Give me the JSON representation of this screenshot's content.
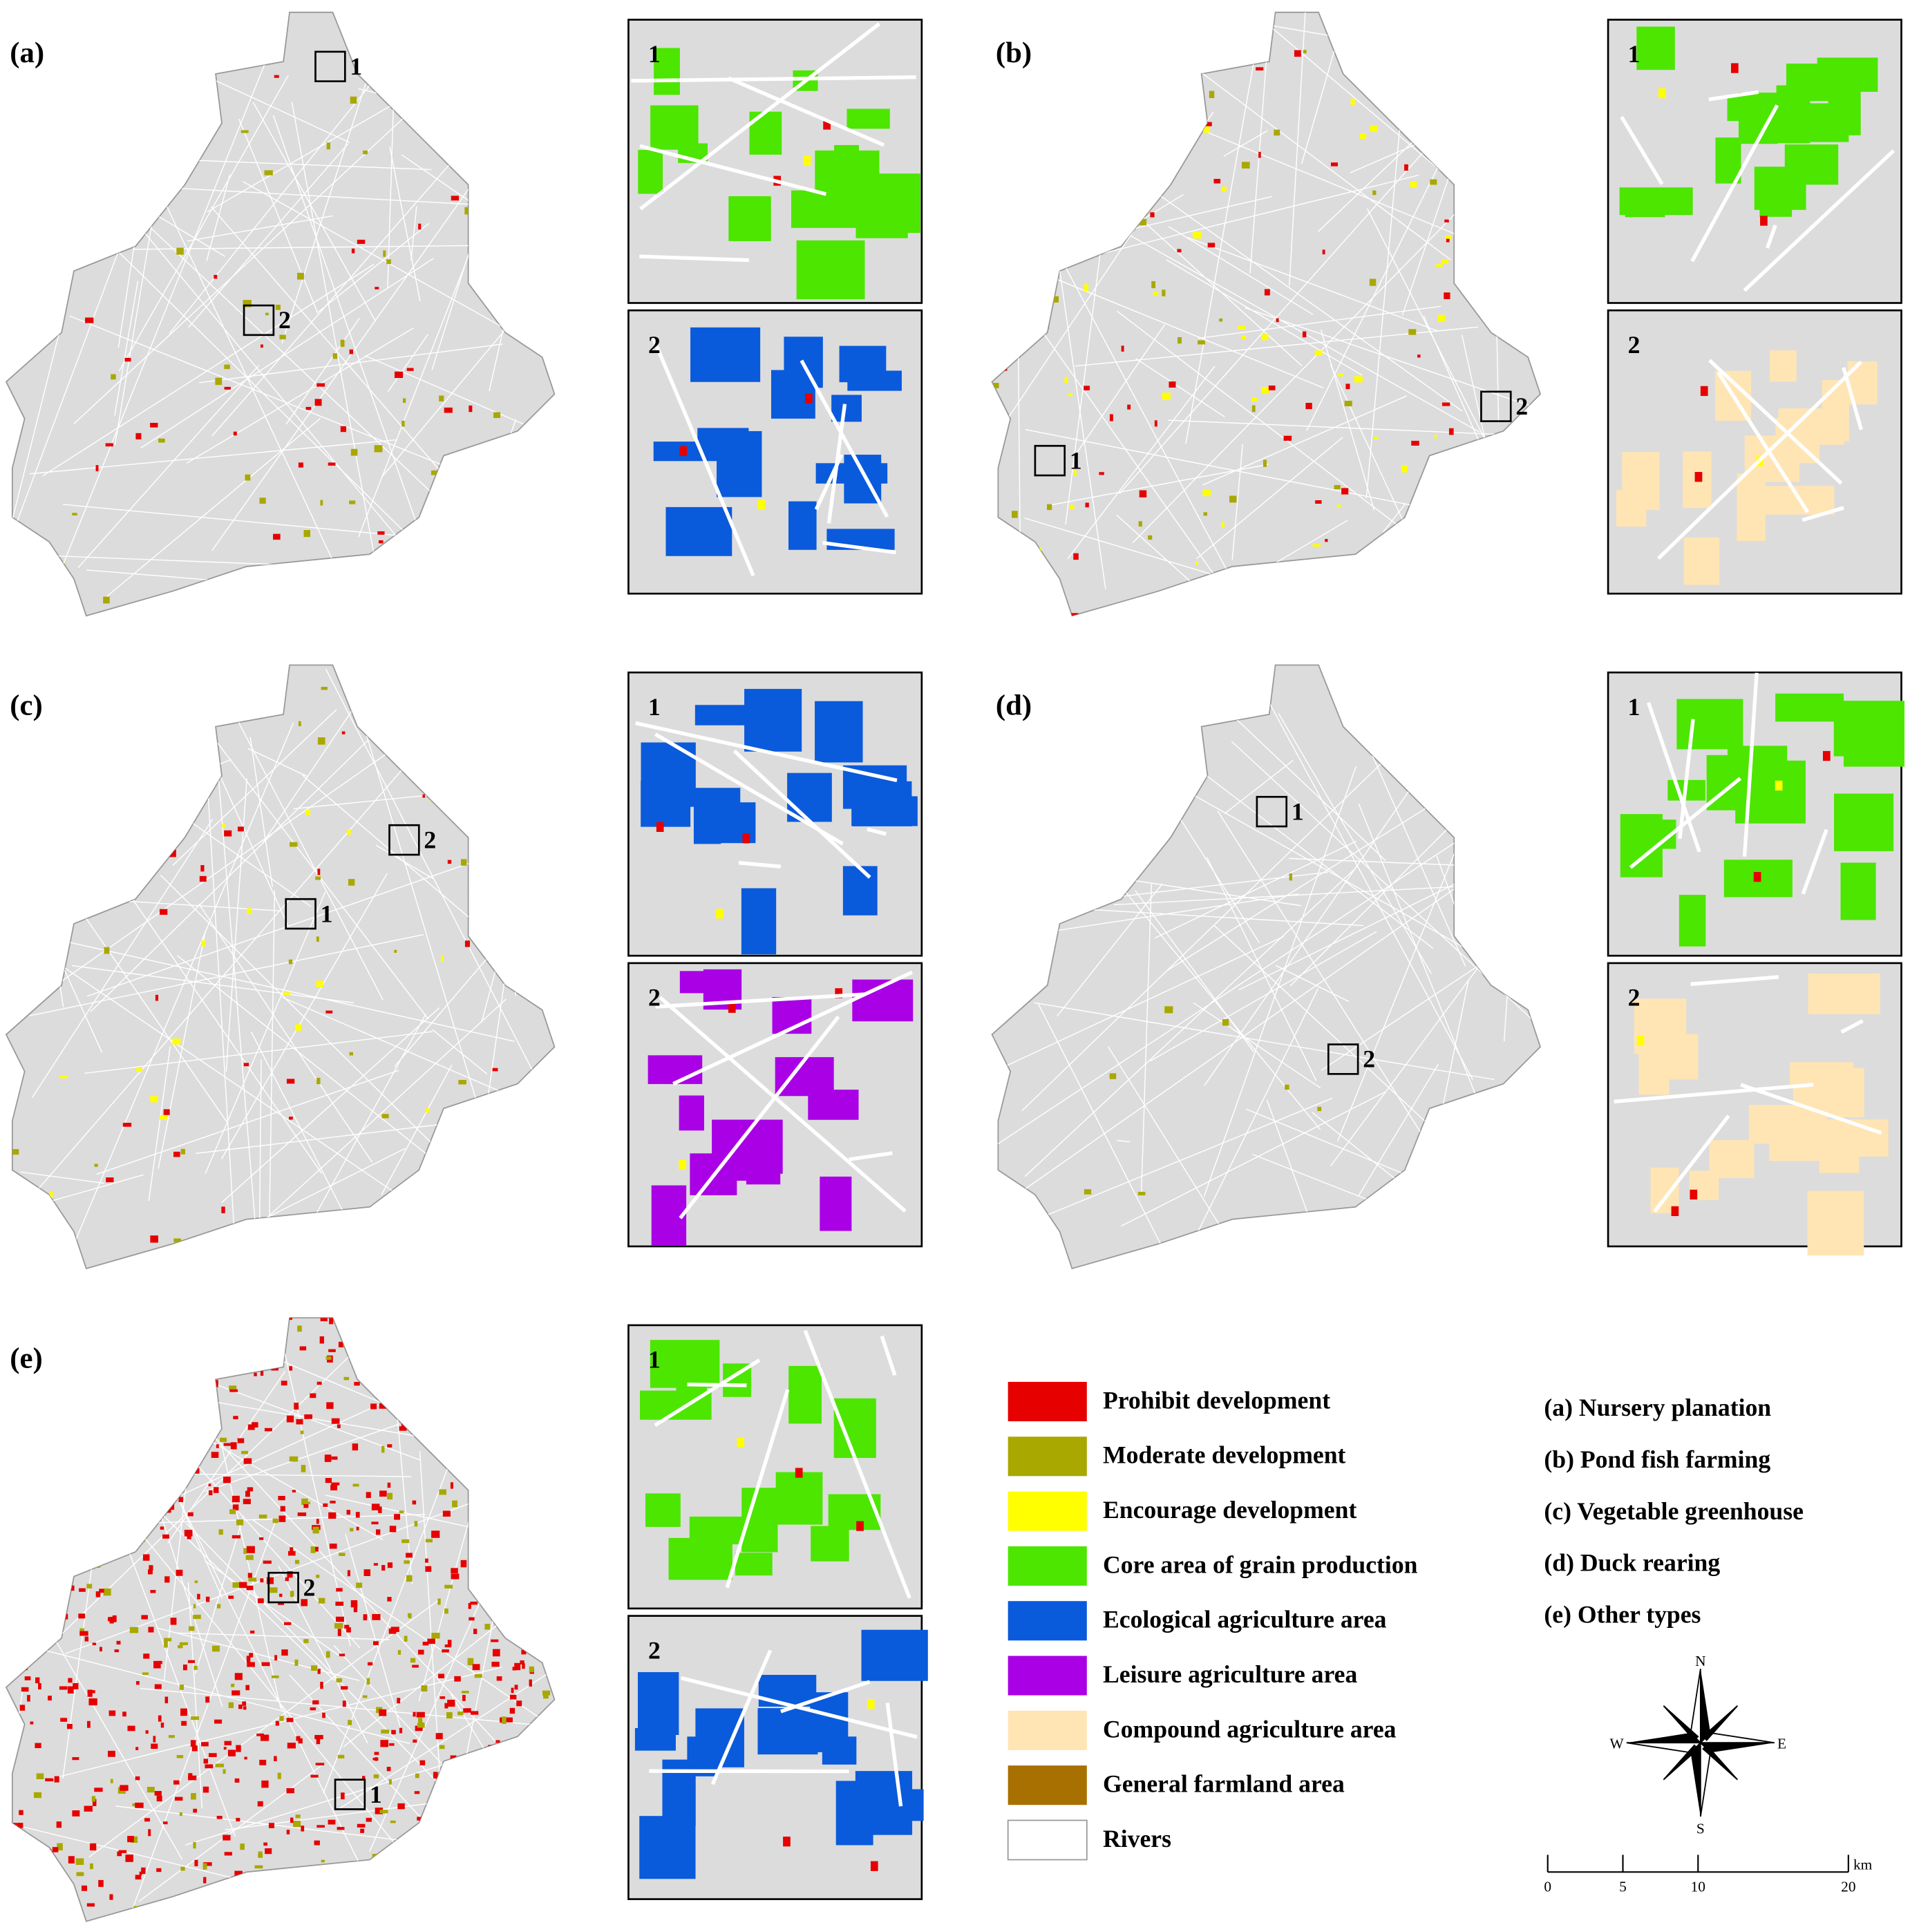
{
  "panels": [
    {
      "label": "(a)",
      "map_markers": [
        "1",
        "2"
      ],
      "insets": [
        "1",
        "2"
      ]
    },
    {
      "label": "(b)",
      "map_markers": [
        "1",
        "2"
      ],
      "insets": [
        "1",
        "2"
      ]
    },
    {
      "label": "(c)",
      "map_markers": [
        "1",
        "2"
      ],
      "insets": [
        "1",
        "2"
      ]
    },
    {
      "label": "(d)",
      "map_markers": [
        "1",
        "2"
      ],
      "insets": [
        "1",
        "2"
      ]
    },
    {
      "label": "(e)",
      "map_markers": [
        "1",
        "2"
      ],
      "insets": [
        "1",
        "2"
      ]
    }
  ],
  "legend": [
    {
      "label": "Prohibit development",
      "color": "#e60000"
    },
    {
      "label": "Moderate development",
      "color": "#a8a800"
    },
    {
      "label": "Encourage development",
      "color": "#ffff00"
    },
    {
      "label": "Core area of grain production",
      "color": "#4ce600"
    },
    {
      "label": "Ecological agriculture area",
      "color": "#0a5adc"
    },
    {
      "label": "Leisure agriculture area",
      "color": "#a900e6"
    },
    {
      "label": "Compound agriculture area",
      "color": "#ffe5b4"
    },
    {
      "label": "General farmland area",
      "color": "#a87000"
    },
    {
      "label": "Rivers",
      "color": "#ffffff"
    }
  ],
  "types": [
    "(a) Nursery planation",
    "(b) Pond fish farming",
    "(c) Vegetable greenhouse",
    "(d) Duck rearing",
    "(e) Other types"
  ],
  "compass": {
    "north": "N",
    "east": "E",
    "south": "S",
    "west": "W"
  },
  "scale_bar": {
    "ticks": [
      0,
      5,
      10,
      20
    ],
    "unit": "km"
  }
}
